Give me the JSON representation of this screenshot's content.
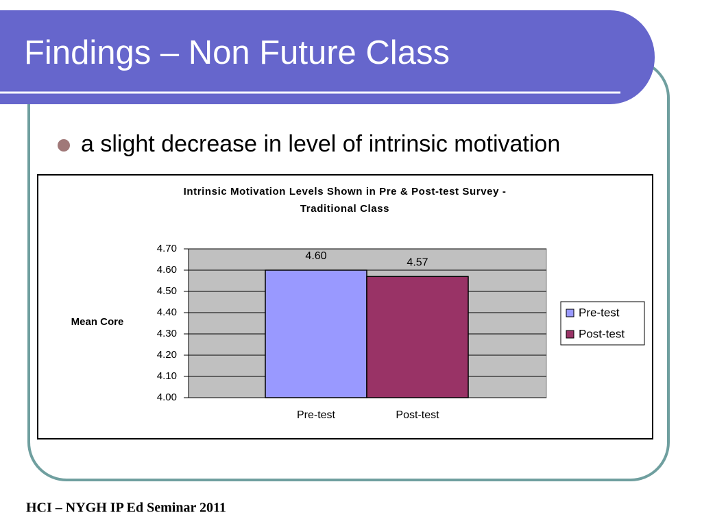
{
  "slide_title": "Findings – Non Future Class",
  "bullet": "a slight decrease in level of intrinsic motivation",
  "footer": "HCI – NYGH IP Ed Seminar 2011",
  "chart_data": {
    "type": "bar",
    "title_lines": [
      "Intrinsic Motivation Levels Shown in Pre & Post-test Survey -",
      "Traditional Class"
    ],
    "y_label": "Mean Core",
    "categories": [
      "Pre-test",
      "Post-test"
    ],
    "series": [
      {
        "name": "Pre-test",
        "color": "#9999ff",
        "values": [
          4.6,
          null
        ],
        "value_labels": [
          "4.60",
          null
        ]
      },
      {
        "name": "Post-test",
        "color": "#993366",
        "values": [
          null,
          4.57
        ],
        "value_labels": [
          null,
          "4.57"
        ]
      }
    ],
    "ylim": [
      4.0,
      4.7
    ],
    "yticks": [
      {
        "value": 4.0,
        "label": "4.00"
      },
      {
        "value": 4.1,
        "label": "4.10"
      },
      {
        "value": 4.2,
        "label": "4.20"
      },
      {
        "value": 4.3,
        "label": "4.30"
      },
      {
        "value": 4.4,
        "label": "4.40"
      },
      {
        "value": 4.5,
        "label": "4.50"
      },
      {
        "value": 4.6,
        "label": "4.60"
      },
      {
        "value": 4.7,
        "label": "4.70"
      }
    ],
    "grid": true,
    "plot_background": "#c0c0c0",
    "legend": "right"
  }
}
